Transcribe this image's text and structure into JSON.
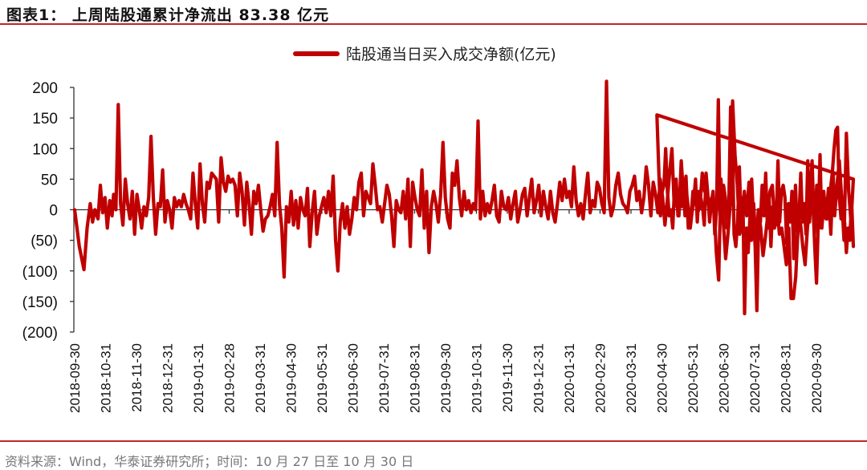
{
  "header": {
    "title": "图表1：  上周陆股通累计净流出 83.38 亿元"
  },
  "legend": {
    "label": "陆股通当日买入成交净额(亿元)",
    "color": "#c00000"
  },
  "footer": {
    "source": "资料来源：Wind，华泰证券研究所；时间：10 月 27 日至 10 月 30 日"
  },
  "colors": {
    "series": "#c00000",
    "rule": "#c0262b",
    "axis": "#333333"
  },
  "chart_data": {
    "type": "line",
    "title": "上周陆股通累计净流出 83.38 亿元",
    "xlabel": "",
    "ylabel": "",
    "ylim": [
      -200,
      200
    ],
    "yticks": [
      200,
      150,
      100,
      50,
      0,
      -50,
      -100,
      -150,
      -200
    ],
    "ytick_labels": [
      "200",
      "150",
      "100",
      "50",
      "0",
      "(50)",
      "(100)",
      "(150)",
      "(200)"
    ],
    "categories": [
      "2018-09-30",
      "2018-10-31",
      "2018-11-30",
      "2018-12-31",
      "2019-01-31",
      "2019-02-28",
      "2019-03-31",
      "2019-04-30",
      "2019-05-31",
      "2019-06-30",
      "2019-07-31",
      "2019-08-31",
      "2019-09-30",
      "2019-10-31",
      "2019-11-30",
      "2019-12-31",
      "2020-01-31",
      "2020-02-29",
      "2020-03-31",
      "2020-04-30",
      "2020-05-31",
      "2020-06-30",
      "2020-07-31",
      "2020-08-31",
      "2020-09-30"
    ],
    "grid": false,
    "legend_position": "top",
    "series": [
      {
        "name": "陆股通当日买入成交净额(亿元)",
        "x_fraction": [
          0,
          0.006,
          0.012,
          0.016,
          0.02,
          0.023,
          0.026,
          0.03,
          0.033,
          0.036,
          0.039,
          0.042,
          0.045,
          0.048,
          0.05,
          0.053,
          0.056,
          0.059,
          0.062,
          0.065,
          0.068,
          0.071,
          0.074,
          0.077,
          0.08,
          0.083,
          0.086,
          0.089,
          0.092,
          0.095,
          0.098,
          0.101,
          0.104,
          0.107,
          0.11,
          0.113,
          0.116,
          0.119,
          0.122,
          0.125,
          0.128,
          0.131,
          0.134,
          0.137,
          0.14,
          0.143,
          0.146,
          0.149,
          0.152,
          0.155,
          0.158,
          0.161,
          0.164,
          0.167,
          0.17,
          0.173,
          0.176,
          0.179,
          0.182,
          0.185,
          0.188,
          0.191,
          0.194,
          0.197,
          0.2,
          0.203,
          0.206,
          0.209,
          0.212,
          0.215,
          0.218,
          0.221,
          0.224,
          0.227,
          0.23,
          0.233,
          0.236,
          0.239,
          0.242,
          0.245,
          0.248,
          0.251,
          0.254,
          0.257,
          0.26,
          0.263,
          0.266,
          0.269,
          0.272,
          0.275,
          0.278,
          0.281,
          0.284,
          0.287,
          0.29,
          0.293,
          0.296,
          0.299,
          0.302,
          0.305,
          0.308,
          0.311,
          0.314,
          0.317,
          0.32,
          0.323,
          0.326,
          0.329,
          0.332,
          0.335,
          0.338,
          0.341,
          0.344,
          0.347,
          0.35,
          0.353,
          0.356,
          0.359,
          0.362,
          0.365,
          0.368,
          0.371,
          0.374,
          0.377,
          0.38,
          0.383,
          0.386,
          0.389,
          0.392,
          0.395,
          0.398,
          0.401,
          0.404,
          0.407,
          0.41,
          0.413,
          0.416,
          0.419,
          0.422,
          0.425,
          0.428,
          0.431,
          0.434,
          0.437,
          0.44,
          0.443,
          0.446,
          0.449,
          0.452,
          0.455,
          0.458,
          0.461,
          0.464,
          0.467,
          0.47,
          0.473,
          0.476,
          0.479,
          0.482,
          0.485,
          0.488,
          0.491,
          0.494,
          0.497,
          0.5,
          0.503,
          0.506,
          0.509,
          0.512,
          0.515,
          0.518,
          0.521,
          0.524,
          0.527,
          0.53,
          0.533,
          0.536,
          0.539,
          0.542,
          0.545,
          0.548,
          0.551,
          0.554,
          0.557,
          0.56,
          0.563,
          0.566,
          0.569,
          0.572,
          0.575,
          0.578,
          0.581,
          0.584,
          0.587,
          0.59,
          0.593,
          0.596,
          0.599,
          0.602,
          0.605,
          0.608,
          0.611,
          0.614,
          0.617,
          0.62,
          0.623,
          0.626,
          0.629,
          0.632,
          0.635,
          0.638,
          0.641,
          0.644,
          0.647,
          0.65,
          0.653,
          0.656,
          0.659,
          0.662,
          0.665,
          0.668,
          0.671,
          0.674,
          0.677,
          0.68,
          0.683,
          0.686,
          0.689,
          0.692,
          0.695,
          0.698,
          0.701,
          0.704,
          0.707,
          0.71,
          0.713,
          0.716,
          0.719,
          0.722,
          0.725,
          0.728,
          0.731,
          0.734,
          0.737,
          0.74,
          0.743,
          0.746,
          0.749,
          0.752,
          0.755,
          0.758,
          0.761,
          0.764,
          0.767,
          0.77,
          0.773,
          0.776,
          0.779,
          0.782,
          0.785,
          0.788,
          0.791,
          0.794,
          0.797,
          0.8,
          0.803,
          0.806,
          0.809,
          0.812,
          0.815,
          0.818,
          0.821,
          0.824,
          0.827,
          0.83,
          0.833,
          0.836,
          0.839,
          0.842,
          0.845,
          0.848,
          0.851,
          0.854,
          0.857,
          0.86,
          0.863,
          0.866,
          0.869,
          0.872,
          0.875,
          0.878,
          0.881,
          0.884,
          0.887,
          0.89,
          0.893,
          0.896,
          0.899,
          0.902,
          0.905,
          0.908,
          0.911,
          0.914,
          0.917,
          0.92,
          0.923,
          0.926,
          0.929,
          0.932,
          0.935,
          0.938,
          0.941,
          0.944,
          0.947,
          0.95,
          0.953,
          0.956,
          0.959,
          0.962,
          0.965,
          0.968,
          0.971,
          0.974,
          0.976,
          0.979,
          0.982,
          0.985,
          0.988,
          0.991,
          0.994,
          0.997,
          1.0
        ],
        "values": [
          0,
          -60,
          -98,
          -30,
          10,
          -20,
          0,
          -15,
          40,
          -5,
          20,
          -30,
          15,
          -10,
          25,
          0,
          172,
          10,
          -25,
          50,
          10,
          -15,
          30,
          -40,
          25,
          0,
          -30,
          5,
          -10,
          20,
          120,
          20,
          -40,
          10,
          5,
          65,
          -20,
          15,
          0,
          -30,
          20,
          5,
          15,
          5,
          25,
          10,
          0,
          -15,
          60,
          10,
          -30,
          75,
          10,
          -20,
          45,
          35,
          60,
          55,
          50,
          -20,
          85,
          45,
          30,
          55,
          45,
          50,
          40,
          -10,
          60,
          30,
          -25,
          45,
          10,
          -40,
          30,
          10,
          40,
          0,
          -35,
          -15,
          -10,
          5,
          25,
          -10,
          110,
          10,
          -30,
          -110,
          5,
          -20,
          30,
          -25,
          15,
          -30,
          20,
          0,
          -10,
          35,
          -60,
          -5,
          30,
          -40,
          -10,
          5,
          20,
          -5,
          30,
          -10,
          55,
          -50,
          -100,
          -20,
          10,
          -30,
          5,
          -40,
          -15,
          20,
          0,
          45,
          60,
          -10,
          30,
          20,
          10,
          75,
          40,
          0,
          5,
          -20,
          10,
          40,
          25,
          -10,
          -60,
          15,
          0,
          -5,
          30,
          -15,
          50,
          -60,
          45,
          20,
          0,
          -10,
          65,
          -30,
          30,
          -70,
          5,
          30,
          10,
          -20,
          25,
          110,
          20,
          -15,
          -30,
          60,
          40,
          80,
          20,
          -10,
          30,
          0,
          15,
          -5,
          10,
          0,
          145,
          -15,
          30,
          -10,
          10,
          -5,
          15,
          40,
          -10,
          -20,
          30,
          5,
          0,
          20,
          -15,
          10,
          30,
          -20,
          0,
          25,
          35,
          -10,
          20,
          50,
          -5,
          15,
          40,
          -10,
          30,
          5,
          -15,
          30,
          -5,
          -20,
          10,
          45,
          15,
          50,
          20,
          30,
          5,
          70,
          15,
          -10,
          10,
          -15,
          25,
          60,
          -5,
          15,
          5,
          45,
          35,
          10,
          -5,
          210,
          20,
          -10,
          5,
          40,
          60,
          25,
          10,
          5,
          -5,
          30,
          40,
          55,
          15,
          30,
          -5,
          20,
          70,
          40,
          -10,
          45,
          25,
          -5,
          50,
          20,
          -25,
          15,
          60,
          100,
          5,
          30,
          -10,
          80,
          20,
          55,
          -30,
          -20,
          30,
          20,
          -5,
          5,
          60,
          30,
          40,
          -10,
          20,
          10,
          -70,
          -115,
          50,
          -20,
          -80,
          -40,
          10,
          178,
          90,
          40,
          -40,
          -20,
          30,
          -10,
          45,
          -50,
          10,
          -60,
          0,
          -30,
          -75,
          -45,
          -10,
          30,
          40,
          -20,
          5,
          -40,
          -30,
          -60,
          -90,
          -30,
          -145,
          -145,
          -110,
          -30,
          -20,
          -60,
          -90,
          -30,
          10,
          80,
          -40,
          40,
          -30,
          10,
          30,
          -15,
          35,
          -40,
          60,
          -10,
          40,
          80,
          20,
          -50,
          125,
          30,
          -20,
          50,
          155,
          70,
          -10,
          30,
          40,
          100,
          30,
          -10,
          0,
          -30,
          35,
          50,
          -10,
          20,
          5,
          40,
          -10,
          25,
          0,
          -30,
          -5,
          15,
          50,
          -20,
          30,
          20,
          5,
          -25,
          60,
          25,
          -20,
          10,
          30,
          -40,
          0,
          180,
          -10,
          30,
          40,
          20,
          -30,
          10,
          168,
          110,
          -40,
          -60,
          -20,
          70,
          -20,
          20,
          -170,
          -30,
          -70,
          -15,
          50,
          -10,
          -60,
          -165,
          -20,
          -20,
          40,
          -10,
          60,
          -30,
          20,
          -60,
          5,
          -30,
          -20,
          80,
          -20,
          30,
          40,
          20,
          -55,
          10,
          -20,
          30,
          -80,
          40,
          -35,
          -15,
          60,
          -20,
          10,
          -40,
          80,
          -20,
          30,
          5,
          -60,
          -120,
          -20,
          90,
          -30,
          5,
          10,
          -15,
          15,
          35,
          60,
          100,
          130,
          135,
          20,
          -15,
          -10,
          -20,
          -70,
          -30,
          -50,
          15,
          -60
        ]
      }
    ]
  }
}
